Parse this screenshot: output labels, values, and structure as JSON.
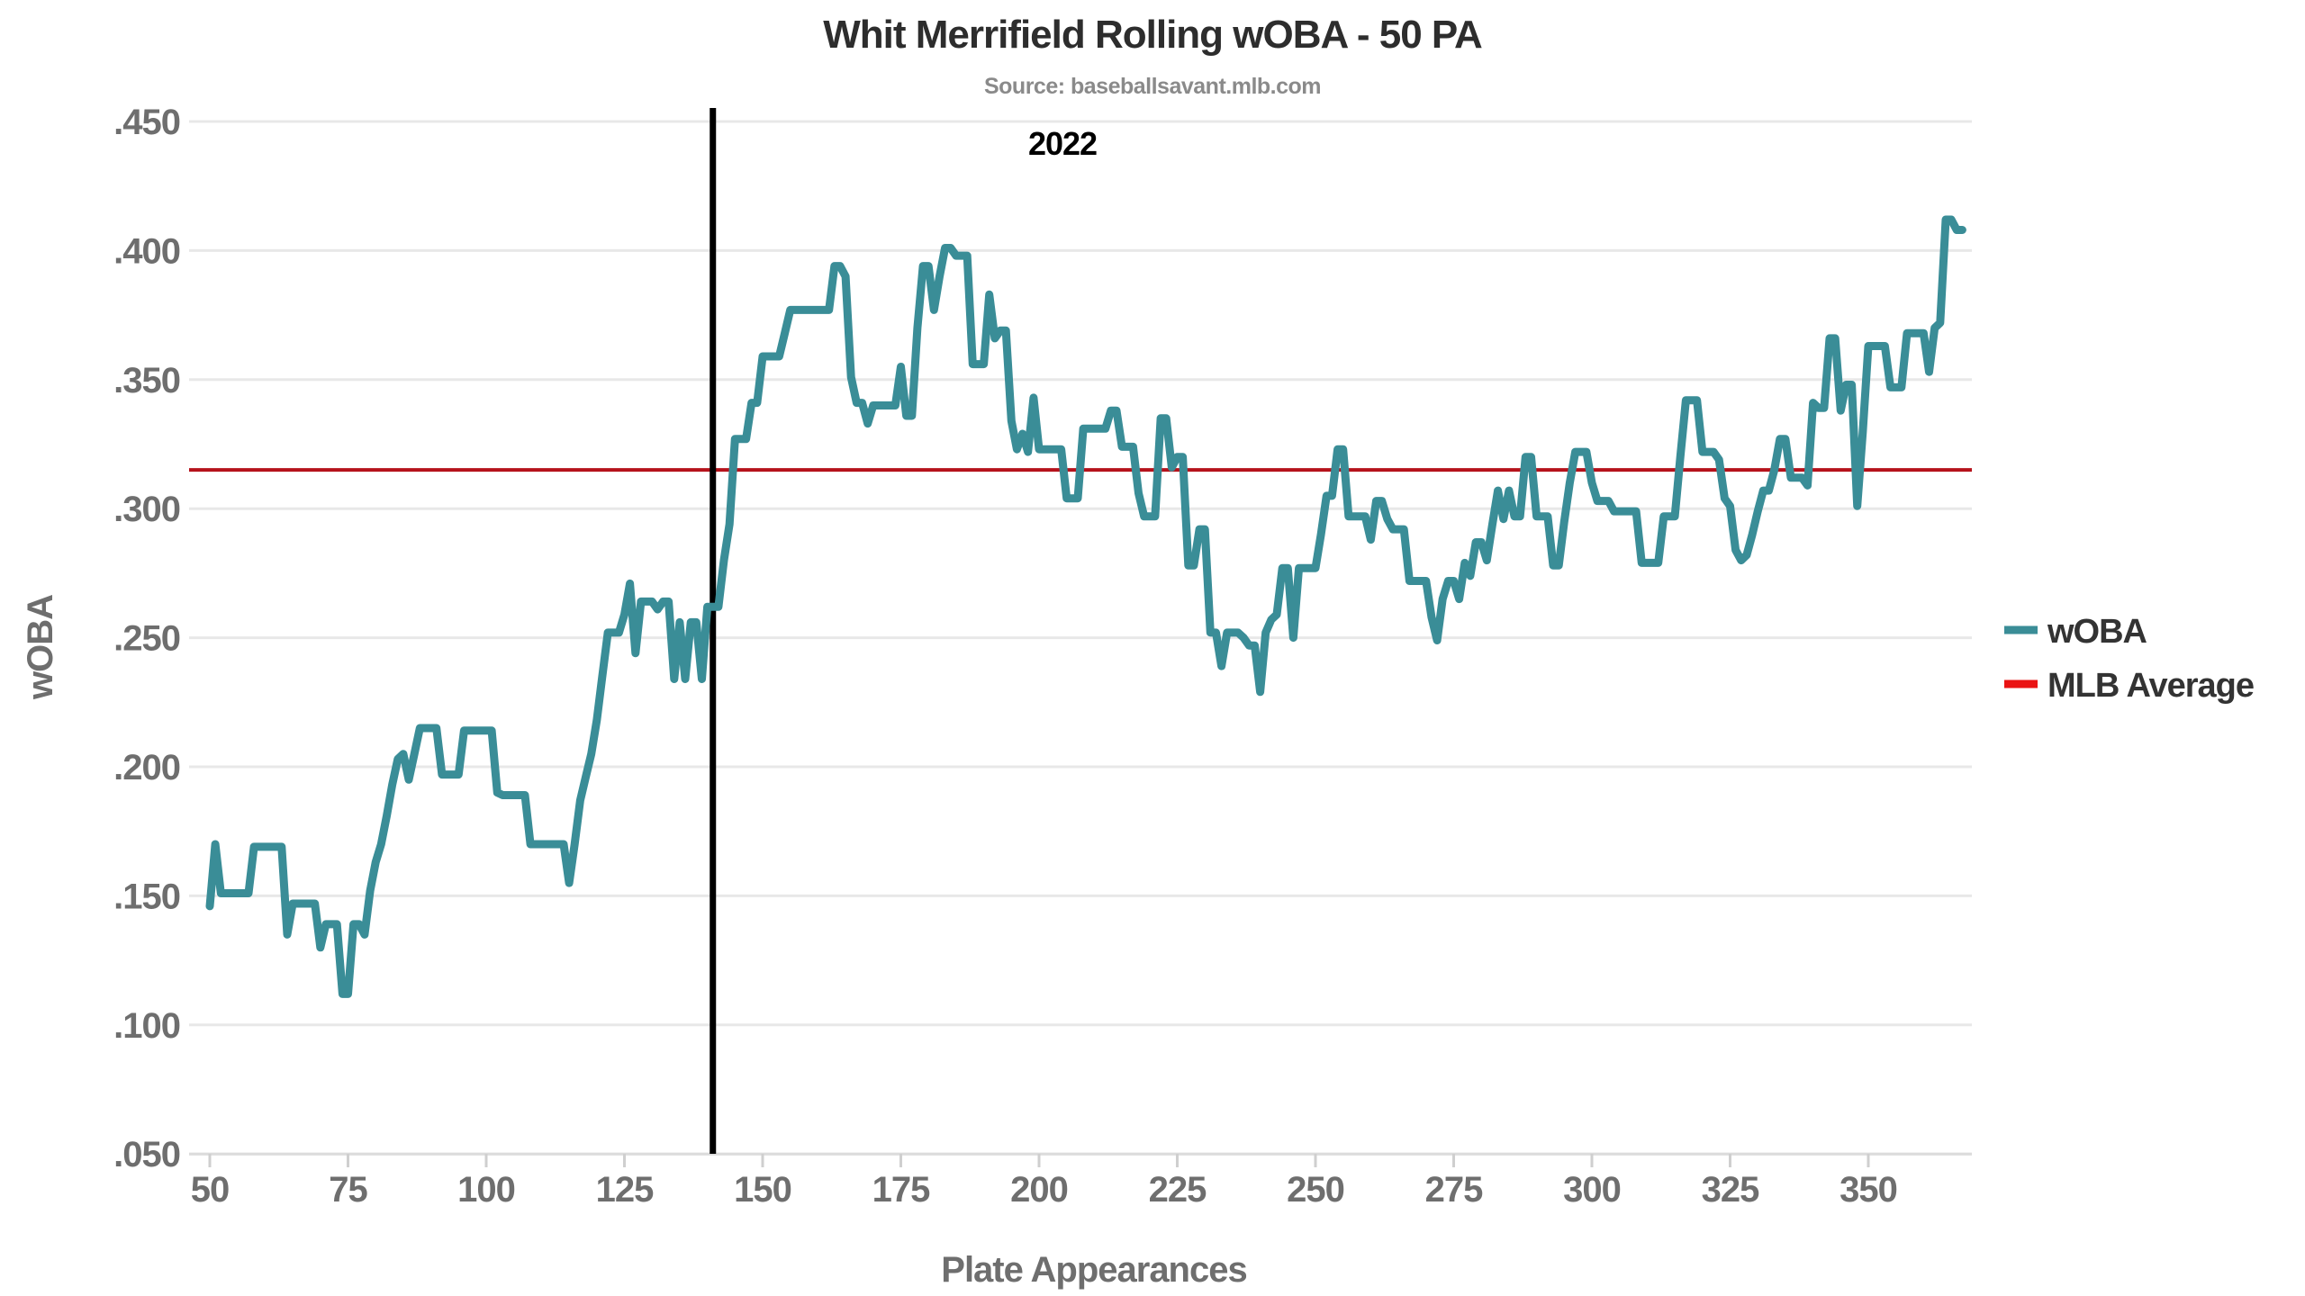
{
  "title": "Whit Merrifield Rolling wOBA - 50 PA",
  "subtitle": "Source: baseballsavant.mlb.com",
  "annotation": "2022",
  "legend": [
    {
      "label": "wOBA",
      "color": "#3a8d97"
    },
    {
      "label": "MLB Average",
      "color": "#ea1313"
    }
  ],
  "colors": {
    "background": "#ffffff",
    "line": "#3a8d97",
    "mlb_line": "#b5121b",
    "legend_mlb_swatch": "#ea1313",
    "grid": "#e8e8e8",
    "axis_text": "#6e6e6e",
    "title_text": "#2d2d2d",
    "subtitle_text": "#8a8a8a",
    "divider": "#000000"
  },
  "chart_data": {
    "type": "line",
    "title": "Whit Merrifield Rolling wOBA - 50 PA",
    "subtitle": "Source: baseballsavant.mlb.com",
    "xlabel": "Plate Appearances",
    "ylabel": "wOBA",
    "x_axis": {
      "title": "Plate Appearances",
      "min": 50,
      "max": 372,
      "ticks": [
        50,
        75,
        100,
        125,
        150,
        175,
        200,
        225,
        250,
        275,
        300,
        325,
        350
      ]
    },
    "y_axis": {
      "title": "wOBA",
      "min": 0.05,
      "max": 0.45,
      "ticks": [
        {
          "label": ".450",
          "value": 0.45
        },
        {
          "label": ".400",
          "value": 0.4
        },
        {
          "label": ".350",
          "value": 0.35
        },
        {
          "label": ".300",
          "value": 0.3
        },
        {
          "label": ".250",
          "value": 0.25
        },
        {
          "label": ".200",
          "value": 0.2
        },
        {
          "label": ".150",
          "value": 0.15
        },
        {
          "label": ".100",
          "value": 0.1
        },
        {
          "label": ".050",
          "value": 0.05
        }
      ]
    },
    "grid": true,
    "legend_position": "right",
    "mlb_average": 0.315,
    "season_divider_pa": 141,
    "season_annotation": {
      "text": "2022",
      "pa": 204,
      "woba": 0.443
    },
    "series": [
      {
        "name": "wOBA",
        "start_pa": 50,
        "step": 1,
        "values": [
          0.146,
          0.17,
          0.151,
          0.151,
          0.151,
          0.151,
          0.151,
          0.151,
          0.169,
          0.169,
          0.169,
          0.169,
          0.169,
          0.169,
          0.135,
          0.147,
          0.147,
          0.147,
          0.147,
          0.147,
          0.13,
          0.139,
          0.139,
          0.139,
          0.112,
          0.112,
          0.139,
          0.139,
          0.135,
          0.152,
          0.163,
          0.17,
          0.181,
          0.193,
          0.203,
          0.205,
          0.195,
          0.205,
          0.215,
          0.215,
          0.215,
          0.215,
          0.197,
          0.197,
          0.197,
          0.197,
          0.214,
          0.214,
          0.214,
          0.214,
          0.214,
          0.214,
          0.19,
          0.189,
          0.189,
          0.189,
          0.189,
          0.189,
          0.17,
          0.17,
          0.17,
          0.17,
          0.17,
          0.17,
          0.17,
          0.155,
          0.17,
          0.187,
          0.196,
          0.205,
          0.218,
          0.235,
          0.252,
          0.252,
          0.252,
          0.259,
          0.271,
          0.244,
          0.264,
          0.264,
          0.264,
          0.261,
          0.264,
          0.264,
          0.234,
          0.256,
          0.234,
          0.256,
          0.256,
          0.234,
          0.262,
          0.262,
          0.262,
          0.28,
          0.294,
          0.327,
          0.327,
          0.327,
          0.341,
          0.341,
          0.359,
          0.359,
          0.359,
          0.359,
          0.368,
          0.377,
          0.377,
          0.377,
          0.377,
          0.377,
          0.377,
          0.377,
          0.377,
          0.394,
          0.394,
          0.39,
          0.351,
          0.341,
          0.341,
          0.333,
          0.34,
          0.34,
          0.34,
          0.34,
          0.34,
          0.355,
          0.336,
          0.336,
          0.37,
          0.394,
          0.394,
          0.377,
          0.39,
          0.401,
          0.401,
          0.398,
          0.398,
          0.398,
          0.356,
          0.356,
          0.356,
          0.383,
          0.366,
          0.369,
          0.369,
          0.334,
          0.323,
          0.329,
          0.322,
          0.343,
          0.323,
          0.323,
          0.323,
          0.323,
          0.323,
          0.304,
          0.304,
          0.304,
          0.331,
          0.331,
          0.331,
          0.331,
          0.331,
          0.338,
          0.338,
          0.324,
          0.324,
          0.324,
          0.306,
          0.297,
          0.297,
          0.297,
          0.335,
          0.335,
          0.316,
          0.32,
          0.32,
          0.278,
          0.278,
          0.292,
          0.292,
          0.252,
          0.252,
          0.239,
          0.252,
          0.252,
          0.252,
          0.25,
          0.247,
          0.247,
          0.229,
          0.252,
          0.257,
          0.259,
          0.277,
          0.277,
          0.25,
          0.277,
          0.277,
          0.277,
          0.277,
          0.29,
          0.305,
          0.305,
          0.323,
          0.323,
          0.297,
          0.297,
          0.297,
          0.297,
          0.288,
          0.303,
          0.303,
          0.296,
          0.292,
          0.292,
          0.292,
          0.272,
          0.272,
          0.272,
          0.272,
          0.258,
          0.249,
          0.265,
          0.272,
          0.272,
          0.265,
          0.279,
          0.274,
          0.287,
          0.287,
          0.28,
          0.294,
          0.307,
          0.296,
          0.307,
          0.297,
          0.297,
          0.32,
          0.32,
          0.297,
          0.297,
          0.297,
          0.278,
          0.278,
          0.295,
          0.31,
          0.322,
          0.322,
          0.322,
          0.31,
          0.303,
          0.303,
          0.303,
          0.299,
          0.299,
          0.299,
          0.299,
          0.299,
          0.279,
          0.279,
          0.279,
          0.279,
          0.297,
          0.297,
          0.297,
          0.32,
          0.342,
          0.342,
          0.342,
          0.322,
          0.322,
          0.322,
          0.319,
          0.304,
          0.301,
          0.284,
          0.28,
          0.282,
          0.29,
          0.299,
          0.307,
          0.307,
          0.315,
          0.327,
          0.327,
          0.312,
          0.312,
          0.312,
          0.309,
          0.341,
          0.339,
          0.339,
          0.366,
          0.366,
          0.338,
          0.348,
          0.348,
          0.301,
          0.33,
          0.363,
          0.363,
          0.363,
          0.363,
          0.347,
          0.347,
          0.347,
          0.368,
          0.368,
          0.368,
          0.368,
          0.353,
          0.37,
          0.372,
          0.412,
          0.412,
          0.408,
          0.408
        ]
      },
      {
        "name": "MLB Average",
        "value": 0.315
      }
    ]
  }
}
